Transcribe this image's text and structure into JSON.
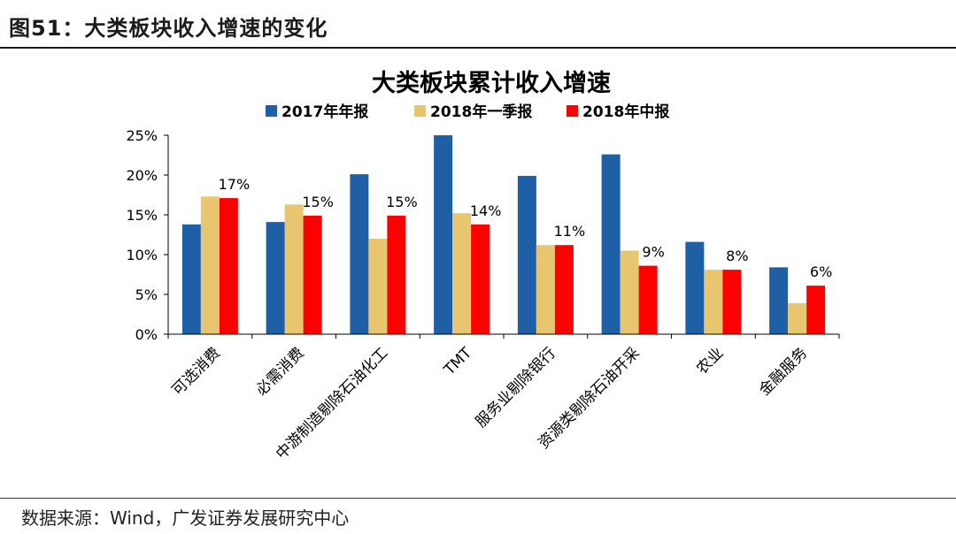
{
  "figure": {
    "label": "图51：大类板块收入增速的变化",
    "source": "数据来源：Wind，广发证券发展研究中心"
  },
  "chart_data": {
    "type": "bar",
    "title": "大类板块累计收入增速",
    "categories": [
      "可选消费",
      "必需消费",
      "中游制造剔除石油化工",
      "TMT",
      "服务业剔除银行",
      "资源类剔除石油开采",
      "农业",
      "金融服务"
    ],
    "series": [
      {
        "name": "2017年年报",
        "color": "#1f5fa6",
        "values": [
          13.8,
          14.1,
          20.1,
          25.0,
          19.9,
          22.6,
          11.6,
          8.4
        ]
      },
      {
        "name": "2018年一季报",
        "color": "#e8c66f",
        "values": [
          17.3,
          16.3,
          12.0,
          15.2,
          11.2,
          10.5,
          8.1,
          3.9
        ]
      },
      {
        "name": "2018年中报",
        "color": "#ff0000",
        "values": [
          17.1,
          14.9,
          14.9,
          13.8,
          11.2,
          8.6,
          8.1,
          6.1
        ]
      }
    ],
    "data_labels": [
      "17%",
      "15%",
      "15%",
      "14%",
      "11%",
      "9%",
      "8%",
      "6%"
    ],
    "yticks": [
      "0%",
      "5%",
      "10%",
      "15%",
      "20%",
      "25%"
    ],
    "ylim": [
      0,
      25
    ],
    "grid": false,
    "legend_position": "top"
  }
}
